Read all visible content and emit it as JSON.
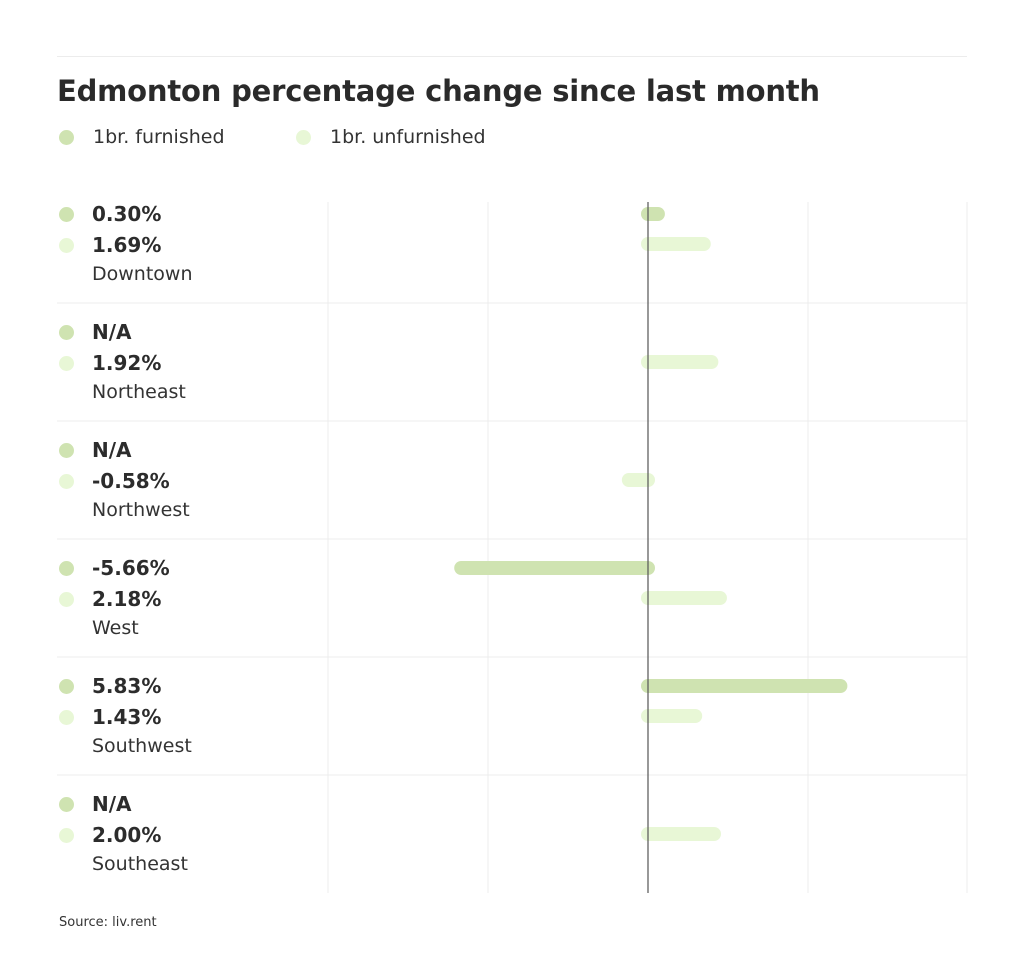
{
  "chart_data": {
    "type": "bar",
    "orientation": "horizontal",
    "title": "Edmonton percentage change since last month",
    "source": "Source: liv.rent",
    "categories": [
      "Downtown",
      "Northeast",
      "Northwest",
      "West",
      "Southwest",
      "Southeast"
    ],
    "series": [
      {
        "name": "1br. furnished",
        "color": "#cfe3b1",
        "values": [
          0.3,
          null,
          null,
          -5.66,
          5.83,
          null
        ],
        "labels": [
          "0.30%",
          "N/A",
          "N/A",
          "-5.66%",
          "5.83%",
          "N/A"
        ]
      },
      {
        "name": "1br. unfurnished",
        "color": "#e8f7d6",
        "values": [
          1.69,
          1.92,
          -0.58,
          2.18,
          1.43,
          2.0
        ],
        "labels": [
          "1.69%",
          "1.92%",
          "-0.58%",
          "2.18%",
          "1.43%",
          "2.00%"
        ]
      }
    ],
    "grid": true,
    "zero_line": true
  }
}
